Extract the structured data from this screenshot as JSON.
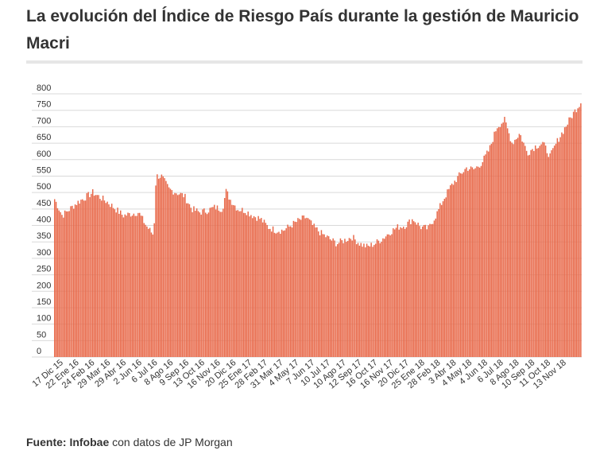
{
  "header": {
    "title": "La evolución del Índice de Riesgo País durante la gestión de Mauricio Macri"
  },
  "footer": {
    "source_label": "Fuente:",
    "source_org": "Infobae",
    "source_rest": " con datos de JP Morgan"
  },
  "colors": {
    "bar": "#e8694a",
    "grid": "#d9d9d9",
    "axis_text": "#333333"
  },
  "chart_data": {
    "type": "bar",
    "title": "La evolución del Índice de Riesgo País durante la gestión de Mauricio Macri",
    "xlabel": "",
    "ylabel": "",
    "ylim": [
      0,
      800
    ],
    "yticks": [
      0,
      50,
      100,
      150,
      200,
      250,
      300,
      350,
      400,
      450,
      500,
      550,
      600,
      650,
      700,
      750,
      800
    ],
    "grid": true,
    "legend": "none",
    "tick_labels": [
      "17 Dic 15",
      "22 Ene 16",
      "24 Feb 16",
      "29 Mar 16",
      "29 Abr 16",
      "2 Jun 16",
      "6 Jul 16",
      "8 Ago 16",
      "9 Sep 16",
      "13 Oct 16",
      "16 Nov 16",
      "20 Dic 16",
      "25 Ene 17",
      "28 Feb 17",
      "31 Mar 17",
      "4 May 17",
      "7 Jun 17",
      "10 Jul 17",
      "10 Ago 17",
      "12 Sep 17",
      "16 Oct 17",
      "16 Nov 17",
      "20 Dic 17",
      "25 Ene 18",
      "28 Feb 18",
      "3 Abr 18",
      "4 May 18",
      "4 Jun 18",
      "6 Jul 18",
      "8 Ago 18",
      "10 Sep 18",
      "11 Oct 18",
      "13 Nov 18"
    ],
    "anchors": [
      [
        0,
        480
      ],
      [
        1,
        430
      ],
      [
        3,
        470
      ],
      [
        5,
        500
      ],
      [
        7,
        470
      ],
      [
        9,
        430
      ],
      [
        11,
        440
      ],
      [
        12,
        400
      ],
      [
        13,
        370
      ],
      [
        13.3,
        550
      ],
      [
        14,
        550
      ],
      [
        15,
        510
      ],
      [
        16,
        500
      ],
      [
        17,
        490
      ],
      [
        18,
        450
      ],
      [
        19,
        440
      ],
      [
        20,
        445
      ],
      [
        21,
        455
      ],
      [
        22,
        450
      ],
      [
        22.5,
        505
      ],
      [
        23,
        480
      ],
      [
        24,
        450
      ],
      [
        25,
        445
      ],
      [
        26,
        430
      ],
      [
        27,
        420
      ],
      [
        28,
        395
      ],
      [
        29,
        385
      ],
      [
        30,
        385
      ],
      [
        31,
        400
      ],
      [
        32,
        415
      ],
      [
        33,
        425
      ],
      [
        34,
        395
      ],
      [
        35,
        375
      ],
      [
        36,
        360
      ],
      [
        37,
        345
      ],
      [
        38,
        355
      ],
      [
        39,
        365
      ],
      [
        40,
        345
      ],
      [
        41,
        335
      ],
      [
        42,
        345
      ],
      [
        43,
        360
      ],
      [
        44,
        380
      ],
      [
        45,
        395
      ],
      [
        46,
        400
      ],
      [
        47,
        420
      ],
      [
        48,
        395
      ],
      [
        49,
        390
      ],
      [
        50,
        430
      ],
      [
        51,
        480
      ],
      [
        52,
        520
      ],
      [
        53,
        550
      ],
      [
        54,
        575
      ],
      [
        55,
        570
      ],
      [
        56,
        590
      ],
      [
        57,
        630
      ],
      [
        58,
        700
      ],
      [
        59,
        720
      ],
      [
        60,
        650
      ],
      [
        61,
        680
      ],
      [
        62,
        620
      ],
      [
        63,
        640
      ],
      [
        64,
        650
      ],
      [
        65,
        610
      ],
      [
        66,
        660
      ],
      [
        67,
        700
      ],
      [
        68,
        740
      ],
      [
        69,
        775
      ]
    ],
    "n_bars": 360
  }
}
